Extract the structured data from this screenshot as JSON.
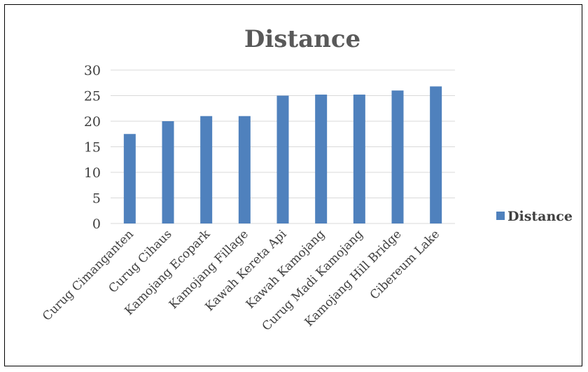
{
  "chart_data": {
    "type": "bar",
    "title": "Distance",
    "categories": [
      "Curug Cimanganten",
      "Curug Cihaus",
      "Kamojang Ecopark",
      "Kamojang Fillage",
      "Kawah Kereta Api",
      "Kawah Kamojang",
      "Curug Madi Kamojang",
      "Kamojang Hill Bridge",
      "Cibereum Lake"
    ],
    "series": [
      {
        "name": "Distance",
        "values": [
          17.5,
          20,
          21,
          21,
          25,
          25.2,
          25.2,
          26,
          26.8
        ],
        "color": "#4f81bd"
      }
    ],
    "ylim": [
      0,
      30
    ],
    "yticks": [
      0,
      5,
      10,
      15,
      20,
      25,
      30
    ],
    "grid": true,
    "legend": "right"
  }
}
